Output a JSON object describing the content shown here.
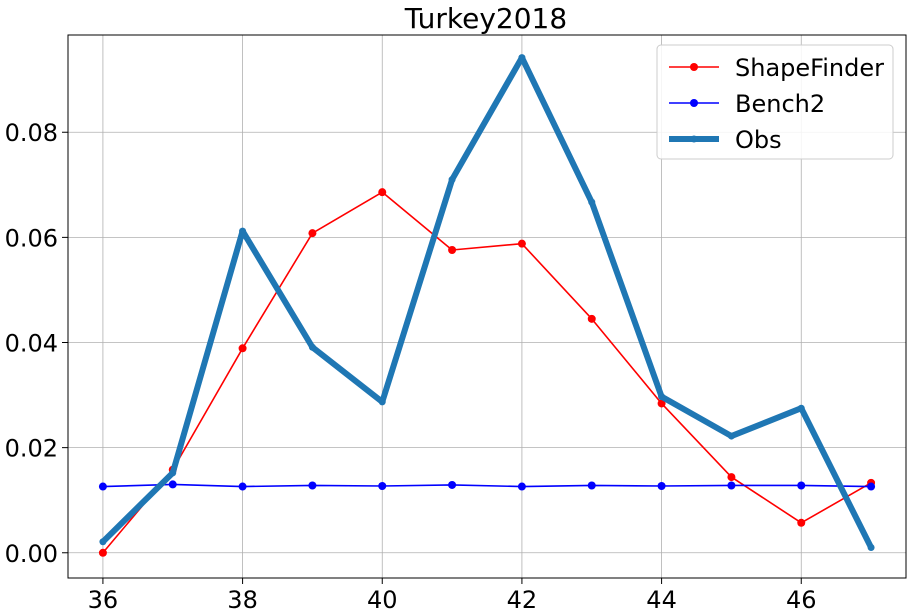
{
  "chart_data": {
    "type": "line",
    "title": "Turkey2018",
    "xlabel": "",
    "ylabel": "",
    "xlim": [
      35.5,
      47.5
    ],
    "ylim": [
      -0.0048,
      0.0985
    ],
    "grid": true,
    "legend_position": "top-right",
    "x": [
      36,
      37,
      38,
      39,
      40,
      41,
      42,
      43,
      44,
      45,
      46,
      47
    ],
    "x_ticks": [
      "36",
      "38",
      "40",
      "42",
      "44",
      "46"
    ],
    "y_ticks": [
      "0.00",
      "0.02",
      "0.04",
      "0.06",
      "0.08"
    ],
    "series": [
      {
        "name": "ShapeFinder",
        "color": "#ff0000",
        "line_width": "thin",
        "values": [
          0.0,
          0.0158,
          0.0389,
          0.0608,
          0.0686,
          0.0576,
          0.0588,
          0.0445,
          0.0284,
          0.0144,
          0.0057,
          0.0133
        ]
      },
      {
        "name": "Bench2",
        "color": "#0000ff",
        "line_width": "thin",
        "values": [
          0.0126,
          0.013,
          0.0126,
          0.0128,
          0.0127,
          0.0129,
          0.0126,
          0.0128,
          0.0127,
          0.0128,
          0.0128,
          0.0126
        ]
      },
      {
        "name": "Obs",
        "color": "#1f77b4",
        "line_width": "thick",
        "values": [
          0.0021,
          0.0152,
          0.0612,
          0.0391,
          0.0287,
          0.071,
          0.0942,
          0.0667,
          0.0297,
          0.0222,
          0.0275,
          0.001
        ]
      }
    ]
  }
}
